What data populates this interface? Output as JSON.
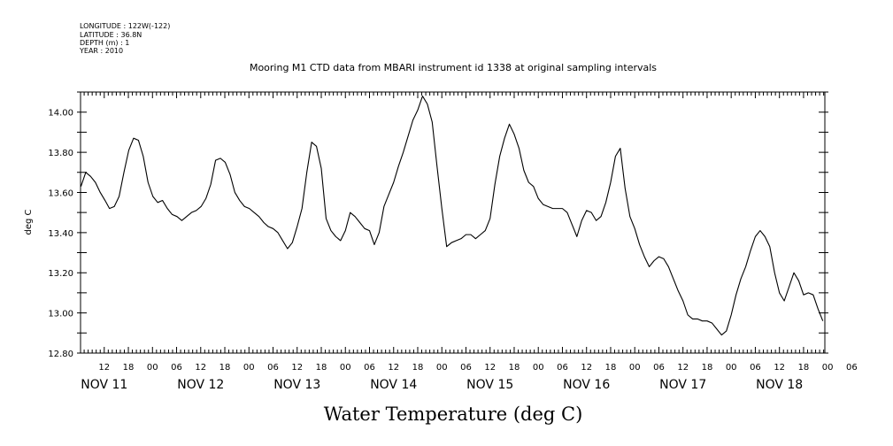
{
  "header": {
    "longitude": "LONGITUDE : 122W(-122)",
    "latitude": "LATITUDE : 36.8N",
    "depth": "DEPTH (m) : 1",
    "year": "YEAR : 2010"
  },
  "chart_data": {
    "type": "line",
    "title": "Mooring M1 CTD data from MBARI instrument id 1338 at original sampling intervals",
    "xlabel": "Water Temperature (deg C)",
    "ylabel": "deg C",
    "ylim": [
      12.8,
      14.1
    ],
    "yticks": [
      "12.80",
      "13.00",
      "13.20",
      "13.40",
      "13.60",
      "13.80",
      "14.00"
    ],
    "x_unit": "hours from NOV 11 00:00 (2010)",
    "xlim": [
      6.1,
      191.3
    ],
    "hour_ticks": [
      {
        "h": 12,
        "label": "12"
      },
      {
        "h": 18,
        "label": "18"
      },
      {
        "h": 24,
        "label": "00"
      },
      {
        "h": 30,
        "label": "06"
      },
      {
        "h": 36,
        "label": "12"
      },
      {
        "h": 42,
        "label": "18"
      },
      {
        "h": 48,
        "label": "00"
      },
      {
        "h": 54,
        "label": "06"
      },
      {
        "h": 60,
        "label": "12"
      },
      {
        "h": 66,
        "label": "18"
      },
      {
        "h": 72,
        "label": "00"
      },
      {
        "h": 78,
        "label": "06"
      },
      {
        "h": 84,
        "label": "12"
      },
      {
        "h": 90,
        "label": "18"
      },
      {
        "h": 96,
        "label": "00"
      },
      {
        "h": 102,
        "label": "06"
      },
      {
        "h": 108,
        "label": "12"
      },
      {
        "h": 114,
        "label": "18"
      },
      {
        "h": 120,
        "label": "00"
      },
      {
        "h": 126,
        "label": "06"
      },
      {
        "h": 132,
        "label": "12"
      },
      {
        "h": 138,
        "label": "18"
      },
      {
        "h": 144,
        "label": "00"
      },
      {
        "h": 150,
        "label": "06"
      },
      {
        "h": 156,
        "label": "12"
      },
      {
        "h": 162,
        "label": "18"
      },
      {
        "h": 168,
        "label": "00"
      },
      {
        "h": 174,
        "label": "06"
      },
      {
        "h": 180,
        "label": "12"
      },
      {
        "h": 186,
        "label": "18"
      },
      {
        "h": 192,
        "label": "00"
      },
      {
        "h": 198,
        "label": "06"
      }
    ],
    "day_labels": [
      {
        "h": 12,
        "label": "NOV 11"
      },
      {
        "h": 36,
        "label": "NOV 12"
      },
      {
        "h": 60,
        "label": "NOV 13"
      },
      {
        "h": 84,
        "label": "NOV 14"
      },
      {
        "h": 108,
        "label": "NOV 15"
      },
      {
        "h": 132,
        "label": "NOV 16"
      },
      {
        "h": 156,
        "label": "NOV 17"
      },
      {
        "h": 180,
        "label": "NOV 18"
      }
    ],
    "series": [
      {
        "x": [
          6.2,
          7.4,
          8.6,
          9.8,
          11.0,
          12.2,
          13.3,
          14.5,
          15.7,
          16.9,
          18.1,
          19.3,
          20.5,
          21.7,
          22.9,
          24.1,
          25.3,
          26.5,
          27.7,
          28.9,
          30.1,
          31.3,
          32.5,
          33.7,
          34.9,
          36.1,
          37.3,
          38.5,
          39.7,
          40.9,
          42.1,
          43.3,
          44.5,
          45.7,
          46.9,
          48.1,
          49.3,
          50.5,
          51.7,
          52.8,
          54.0,
          55.2,
          56.4,
          57.6,
          58.8,
          60.0,
          61.2,
          62.4,
          63.6,
          64.8,
          66.0,
          67.2,
          68.4,
          69.6,
          70.8,
          72.0,
          73.2,
          74.4,
          75.6,
          76.8,
          78.0,
          79.2,
          80.4,
          81.6,
          82.8,
          84.0,
          85.2,
          86.4,
          87.6,
          88.8,
          90.0,
          91.2,
          92.4,
          93.6,
          94.8,
          96.0,
          97.2,
          98.4,
          99.6,
          100.8,
          102.0,
          103.2,
          104.4,
          105.6,
          106.8,
          108.0,
          109.2,
          110.4,
          111.6,
          112.8,
          114.0,
          115.2,
          116.4,
          117.6,
          118.8,
          120.0,
          121.2,
          122.4,
          123.6,
          124.8,
          126.0,
          127.2,
          128.4,
          129.6,
          130.8,
          132.0,
          133.2,
          134.4,
          135.6,
          136.8,
          138.0,
          139.2,
          140.4,
          141.6,
          142.8,
          144.0,
          145.2,
          146.4,
          147.6,
          148.8,
          150.0,
          151.2,
          152.4,
          153.6,
          154.8,
          156.0,
          157.2,
          158.4,
          159.6,
          160.8,
          162.0,
          163.2,
          164.4,
          165.6,
          166.8,
          168.0,
          169.2,
          170.4,
          171.6,
          172.8,
          174.0,
          175.2,
          176.4,
          177.6,
          178.8,
          180.0,
          181.2,
          182.4,
          183.6,
          184.8,
          186.0,
          187.2,
          188.4,
          189.6,
          190.8
        ],
        "y": [
          13.63,
          13.7,
          13.68,
          13.65,
          13.6,
          13.56,
          13.52,
          13.53,
          13.58,
          13.7,
          13.81,
          13.87,
          13.86,
          13.78,
          13.65,
          13.58,
          13.55,
          13.56,
          13.52,
          13.49,
          13.48,
          13.46,
          13.48,
          13.5,
          13.51,
          13.53,
          13.57,
          13.64,
          13.76,
          13.77,
          13.75,
          13.69,
          13.6,
          13.56,
          13.53,
          13.52,
          13.5,
          13.48,
          13.45,
          13.43,
          13.42,
          13.4,
          13.36,
          13.32,
          13.35,
          13.43,
          13.52,
          13.7,
          13.85,
          13.83,
          13.72,
          13.47,
          13.41,
          13.38,
          13.36,
          13.41,
          13.5,
          13.48,
          13.45,
          13.42,
          13.41,
          13.34,
          13.4,
          13.53,
          13.59,
          13.65,
          13.73,
          13.8,
          13.88,
          13.96,
          14.01,
          14.08,
          14.04,
          13.95,
          13.73,
          13.52,
          13.33,
          13.35,
          13.36,
          13.37,
          13.39,
          13.39,
          13.37,
          13.39,
          13.41,
          13.47,
          13.64,
          13.78,
          13.87,
          13.94,
          13.89,
          13.82,
          13.71,
          13.65,
          13.63,
          13.57,
          13.54,
          13.53,
          13.52,
          13.52,
          13.52,
          13.5,
          13.44,
          13.38,
          13.46,
          13.51,
          13.5,
          13.46,
          13.48,
          13.55,
          13.65,
          13.78,
          13.82,
          13.62,
          13.48,
          13.42,
          13.34,
          13.28,
          13.23,
          13.26,
          13.28,
          13.27,
          13.23,
          13.17,
          13.11,
          13.06,
          12.99,
          12.97,
          12.97,
          12.96,
          12.96,
          12.95,
          12.92,
          12.89,
          12.91,
          12.99,
          13.09,
          13.17,
          13.23,
          13.31,
          13.38,
          13.41,
          13.38,
          13.33,
          13.2,
          13.1,
          13.06,
          13.13,
          13.2,
          13.16,
          13.09,
          13.1,
          13.09,
          13.02,
          12.96
        ]
      }
    ]
  }
}
